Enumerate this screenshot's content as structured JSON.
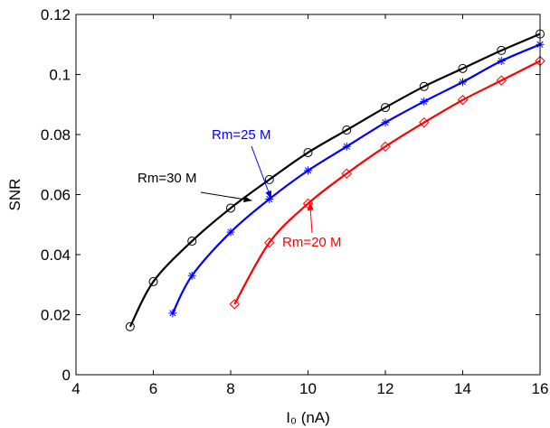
{
  "chart_data": {
    "type": "line",
    "title": "",
    "xlabel": "I₀ (nA)",
    "ylabel": "SNR",
    "xlim": [
      4,
      16
    ],
    "ylim": [
      0,
      0.12
    ],
    "xticks": [
      4,
      6,
      8,
      10,
      12,
      14,
      16
    ],
    "xtick_labels": [
      "4",
      "6",
      "8",
      "10",
      "12",
      "14",
      "16"
    ],
    "yticks": [
      0,
      0.02,
      0.04,
      0.06,
      0.08,
      0.1,
      0.12
    ],
    "ytick_labels": [
      "0",
      "0.02",
      "0.04",
      "0.06",
      "0.08",
      "0.1",
      "0.12"
    ],
    "grid": false,
    "legend": "none",
    "series": [
      {
        "name": "Rm=30 M",
        "color": "#000000",
        "marker": "circle",
        "x": [
          5.4,
          6,
          7,
          8,
          9,
          10,
          11,
          12,
          13,
          14,
          15,
          16
        ],
        "y": [
          0.016,
          0.031,
          0.0445,
          0.0555,
          0.065,
          0.074,
          0.0815,
          0.089,
          0.096,
          0.102,
          0.108,
          0.1135
        ]
      },
      {
        "name": "Rm=25 M",
        "color": "#0000ff",
        "marker": "star",
        "x": [
          6.5,
          7,
          8,
          9,
          10,
          11,
          12,
          13,
          14,
          15,
          16
        ],
        "y": [
          0.0205,
          0.033,
          0.0475,
          0.0585,
          0.068,
          0.076,
          0.084,
          0.091,
          0.0975,
          0.1045,
          0.11
        ]
      },
      {
        "name": "Rm=20 M",
        "color": "#ff0000",
        "marker": "diamond",
        "x": [
          8.1,
          9,
          10,
          11,
          12,
          13,
          14,
          15,
          16
        ],
        "y": [
          0.0235,
          0.044,
          0.057,
          0.067,
          0.076,
          0.084,
          0.0915,
          0.098,
          0.1045
        ]
      }
    ],
    "annotations": [
      {
        "text": "Rm=30 M",
        "color": "#000000",
        "arrow_to": [
          8.55,
          0.058
        ]
      },
      {
        "text": "Rm=25 M",
        "color": "#0000ff",
        "arrow_to": [
          9.05,
          0.0585
        ]
      },
      {
        "text": "Rm=20 M",
        "color": "#ff0000",
        "arrow_to": [
          10.05,
          0.0575
        ]
      }
    ]
  }
}
